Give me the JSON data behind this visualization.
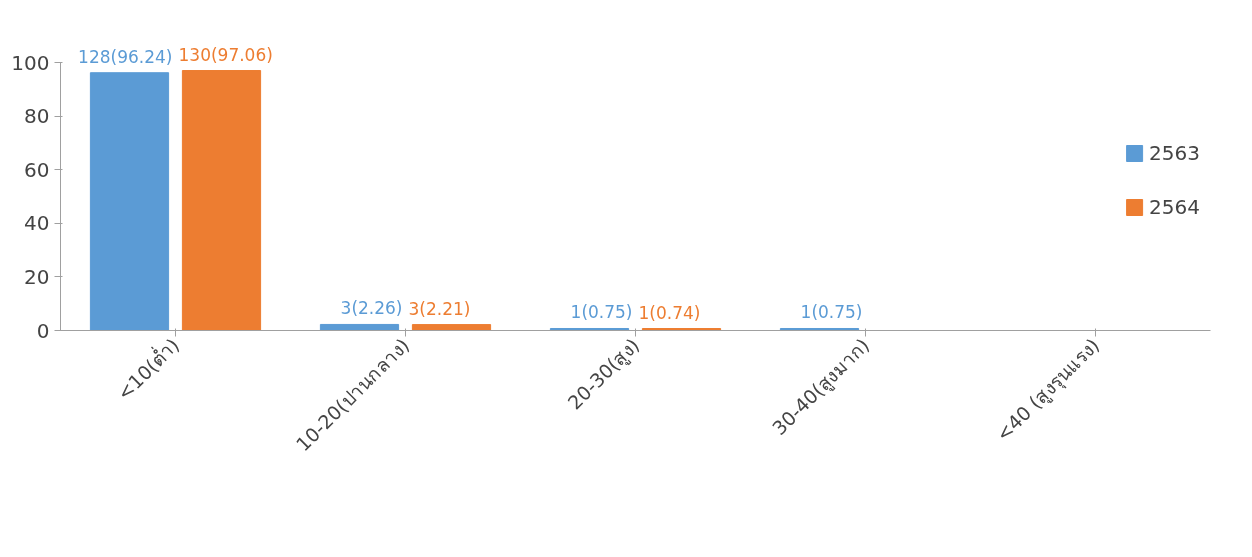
{
  "chart_data": {
    "type": "bar",
    "categories": [
      "<10(ต่ำ)",
      "10-20(ปานกลาง)",
      "20-30(สูง)",
      "30-40(สูงมาก)",
      "<40 (สูงรุนแรง)"
    ],
    "series": [
      {
        "name": "2563",
        "color": "#5b9bd5",
        "values": [
          96.24,
          2.26,
          0.75,
          0.75,
          null
        ],
        "value_labels": [
          "128(96.24)",
          "3(2.26)",
          "1(0.75)",
          "1(0.75)",
          null
        ]
      },
      {
        "name": "2564",
        "color": "#ed7d31",
        "values": [
          97.06,
          2.21,
          0.74,
          null,
          null
        ],
        "value_labels": [
          "130(97.06)",
          "3(2.21)",
          "1(0.74)",
          null,
          null
        ]
      }
    ],
    "ylim": [
      0,
      100
    ],
    "yticks": [
      0,
      20,
      40,
      60,
      80,
      100
    ],
    "grid": false,
    "legend": "right"
  }
}
